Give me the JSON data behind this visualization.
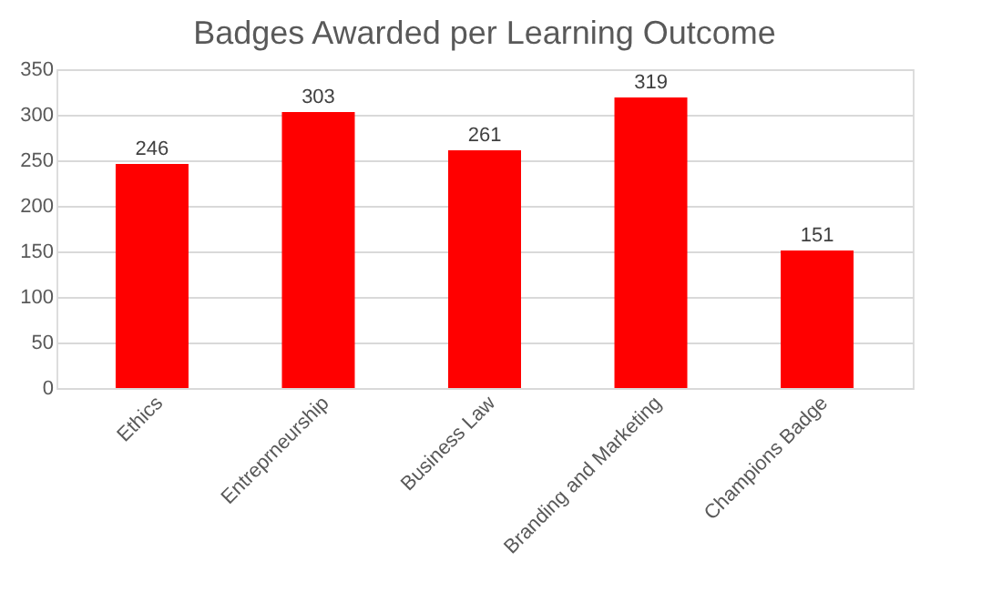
{
  "chart_data": {
    "type": "bar",
    "title": "Badges Awarded per Learning Outcome",
    "categories": [
      "Ethics",
      "Entreprneurship",
      "Business Law",
      "Branding and Marketing",
      "Champions Badge"
    ],
    "values": [
      246,
      303,
      261,
      319,
      151
    ],
    "color": "#ff0000",
    "ylim": [
      0,
      350
    ],
    "yticks": [
      0,
      50,
      100,
      150,
      200,
      250,
      300,
      350
    ],
    "grid": "y",
    "data_labels": true
  }
}
